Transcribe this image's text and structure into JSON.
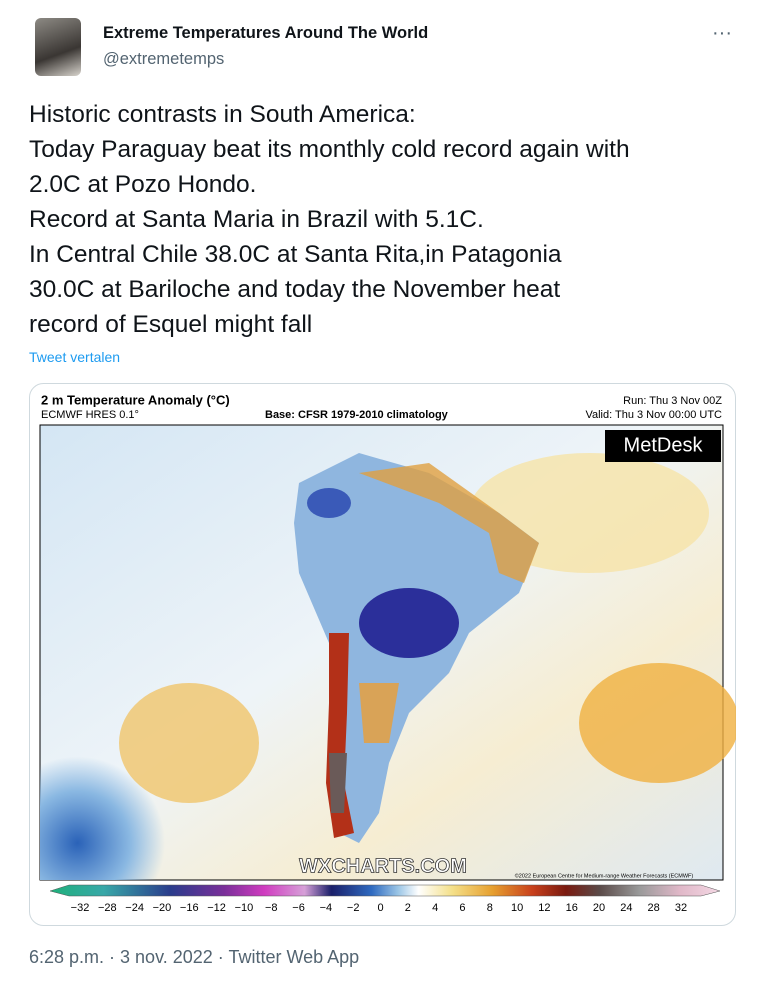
{
  "tweet": {
    "author": {
      "name": "Extreme Temperatures Around The World",
      "handle": "@extremetemps"
    },
    "text_lines": [
      "Historic contrasts in South America:",
      "Today Paraguay beat its monthly cold record again with",
      "2.0C at Pozo Hondo.",
      "Record at Santa Maria in Brazil with 5.1C.",
      "In Central Chile 38.0C at Santa Rita,in Patagonia",
      "30.0C at Bariloche and today the November heat",
      "record of Esquel might fall"
    ],
    "translate": "Tweet vertalen",
    "more": "···",
    "footer": "6:28 p.m. · 3 nov. 2022 · Twitter Web App"
  },
  "map": {
    "title": "2 m Temperature Anomaly (°C)",
    "model": "ECMWF HRES 0.1°",
    "base": "Base: CFSR 1979-2010 climatology",
    "run": "Run: Thu 3 Nov 00Z",
    "valid": "Valid: Thu 3 Nov 00:00 UTC",
    "logo": "MetDesk",
    "watermark": "WXCHARTS.COM",
    "copyright": "©2022 European Centre for Medium-range Weather Forecasts (ECMWF)",
    "colorbar_labels": [
      "−32",
      "−28",
      "−24",
      "−20",
      "−16",
      "−12",
      "−10",
      "−8",
      "−6",
      "−4",
      "−2",
      "0",
      "2",
      "4",
      "6",
      "8",
      "10",
      "12",
      "16",
      "20",
      "24",
      "28",
      "32"
    ]
  }
}
